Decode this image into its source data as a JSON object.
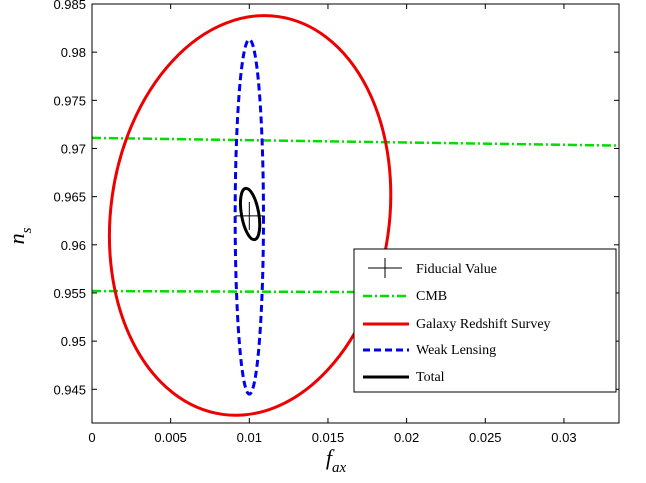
{
  "chart_data": {
    "type": "line",
    "xlabel": {
      "main": "f",
      "sub": "ax"
    },
    "ylabel": {
      "main": "n",
      "sub": "s"
    },
    "xlim": [
      0,
      0.0335
    ],
    "ylim": [
      0.9415,
      0.985
    ],
    "xticks": [
      0,
      0.005,
      0.01,
      0.015,
      0.02,
      0.025,
      0.03
    ],
    "xtick_labels": [
      "0",
      "0.005",
      "0.01",
      "0.015",
      "0.02",
      "0.025",
      "0.03"
    ],
    "yticks": [
      0.945,
      0.95,
      0.955,
      0.96,
      0.965,
      0.97,
      0.975,
      0.98,
      0.985
    ],
    "ytick_labels": [
      "0.945",
      "0.95",
      "0.955",
      "0.96",
      "0.965",
      "0.97",
      "0.975",
      "0.98",
      "0.985"
    ],
    "grid": false,
    "legend_position": "bottom-right",
    "fiducial": {
      "name": "Fiducial Value",
      "x": 0.01,
      "y": 0.963
    },
    "series": [
      {
        "name": "CMB",
        "kind": "band",
        "color": "#00dd00",
        "dash": "dashdot",
        "upper": [
          [
            0,
            0.9711
          ],
          [
            0.0335,
            0.9703
          ]
        ],
        "lower": [
          [
            0,
            0.9552
          ],
          [
            0.0335,
            0.955
          ]
        ]
      },
      {
        "name": "Galaxy Redshift Survey",
        "kind": "ellipse",
        "color": "#ee0000",
        "dash": "solid",
        "center": [
          0.0101,
          0.963
        ],
        "x_extent": [
          0.0012,
          0.0189
        ],
        "y_extent": [
          0.9422,
          0.9839
        ]
      },
      {
        "name": "Weak Lensing",
        "kind": "ellipse",
        "color": "#0000ee",
        "dash": "dashed",
        "center": [
          0.01,
          0.963
        ],
        "x_extent": [
          0.0091,
          0.0109
        ],
        "y_extent": [
          0.9445,
          0.9813
        ]
      },
      {
        "name": "Total",
        "kind": "ellipse",
        "color": "#000000",
        "dash": "solid",
        "center": [
          0.01,
          0.963
        ],
        "x_extent": [
          0.0095,
          0.0106
        ],
        "y_extent": [
          0.9605,
          0.9659
        ]
      }
    ]
  }
}
